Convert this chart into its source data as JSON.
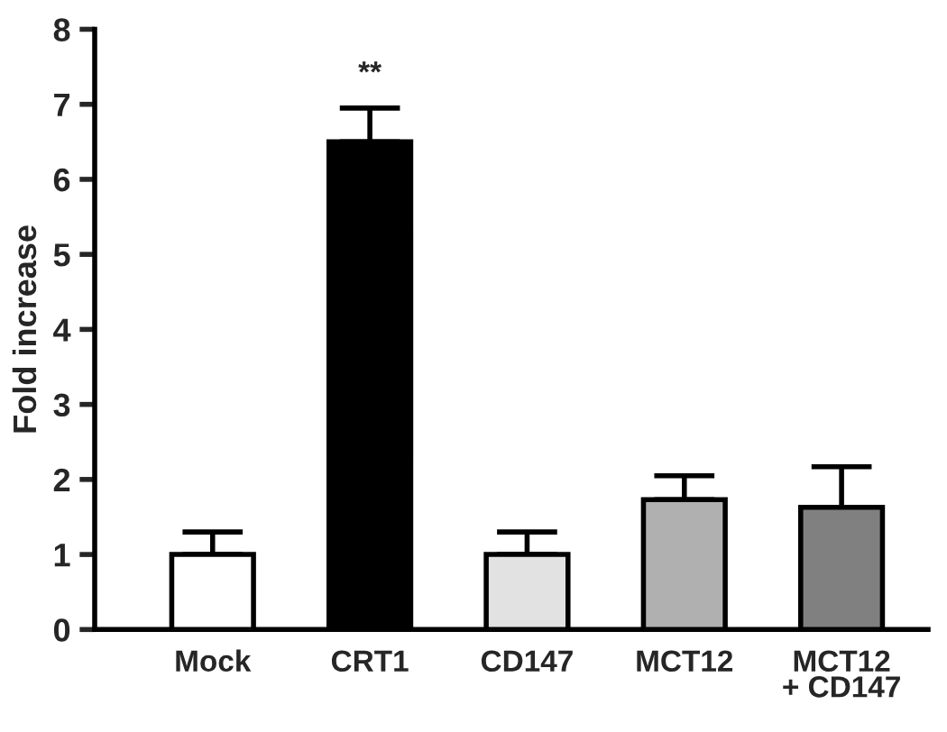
{
  "chart_data": {
    "type": "bar",
    "ylabel": "Fold increase",
    "categories": [
      "Mock",
      "CRT1",
      "CD147",
      "MCT12",
      "MCT12\n+ CD147"
    ],
    "values": [
      1.0,
      6.5,
      1.0,
      1.73,
      1.63
    ],
    "colors": [
      "#ffffff",
      "#000000",
      "#e2e2e2",
      "#b0b0b0",
      "#808080"
    ],
    "errors": [
      [
        1.0,
        1.3
      ],
      [
        6.5,
        6.95
      ],
      [
        1.0,
        1.3
      ],
      [
        1.73,
        2.05
      ],
      [
        1.63,
        2.17
      ]
    ],
    "annotations": [
      "**"
    ],
    "ylim": [
      0,
      8
    ],
    "yticks": [
      0,
      1,
      2,
      3,
      4,
      5,
      6,
      7,
      8
    ],
    "grid": false,
    "legend": false
  }
}
